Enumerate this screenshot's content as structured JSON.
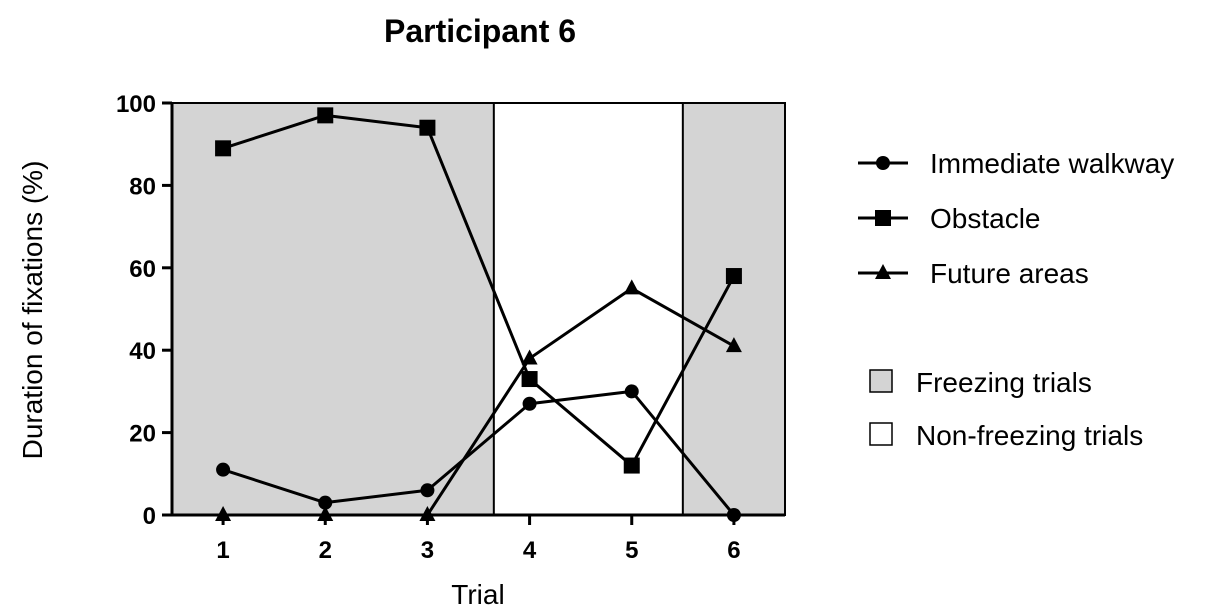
{
  "chart_data": {
    "type": "line",
    "title": "Participant 6",
    "xlabel": "Trial",
    "ylabel": "Duration of fixations (%)",
    "categories": [
      "1",
      "2",
      "3",
      "4",
      "5",
      "6"
    ],
    "x": [
      1,
      2,
      3,
      4,
      5,
      6
    ],
    "xlim": [
      0.5,
      6.5
    ],
    "ylim": [
      0,
      100
    ],
    "yticks": [
      "0",
      "20",
      "40",
      "60",
      "80",
      "100"
    ],
    "grid": false,
    "legend_position": "right",
    "series": [
      {
        "name": "Immediate walkway",
        "marker": "circle",
        "values": [
          11,
          3,
          6,
          27,
          30,
          0
        ]
      },
      {
        "name": "Obstacle",
        "marker": "square",
        "values": [
          89,
          97,
          94,
          33,
          12,
          58
        ]
      },
      {
        "name": "Future areas",
        "marker": "triangle",
        "values": [
          0,
          0,
          0,
          38,
          55,
          41
        ]
      }
    ],
    "shaded_regions": [
      {
        "label": "Freezing trials",
        "from": 0.5,
        "to": 3.65,
        "color": "#d4d4d4"
      },
      {
        "label": "Freezing trials",
        "from": 5.5,
        "to": 6.5,
        "color": "#d4d4d4"
      }
    ],
    "region_legend": [
      {
        "label": "Freezing trials",
        "color": "#d4d4d4"
      },
      {
        "label": "Non-freezing trials",
        "color": "#ffffff"
      }
    ]
  }
}
